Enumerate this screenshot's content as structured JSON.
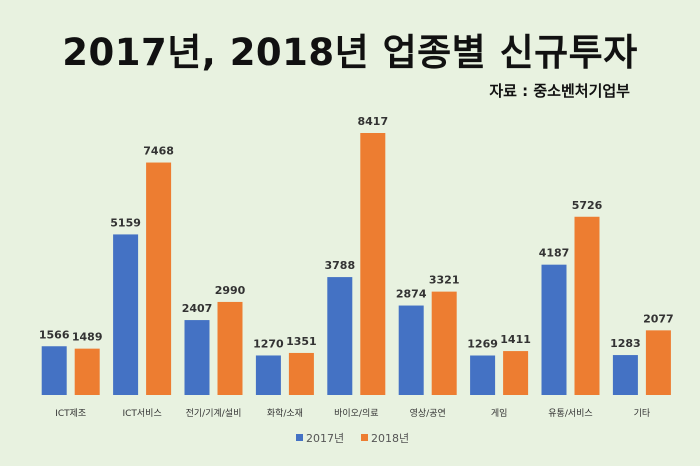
{
  "header": {
    "title": "2017년, 2018년 업종별 신규투자",
    "source": "자료 : 중소벤처기업부"
  },
  "chart_data": {
    "type": "bar",
    "title": "2017년, 2018년 업종별 신규투자",
    "categories": [
      "ICT제조",
      "ICT서비스",
      "전기/기계/설비",
      "화학/소재",
      "바이오/의료",
      "영상/공연",
      "게임",
      "유통/서비스",
      "기타"
    ],
    "series": [
      {
        "name": "2017년",
        "color": "#4472c4",
        "values": [
          1566,
          5159,
          2407,
          1270,
          3788,
          2874,
          1269,
          4187,
          1283
        ]
      },
      {
        "name": "2018년",
        "color": "#ed7d31",
        "values": [
          1489,
          7468,
          2990,
          1351,
          8417,
          3321,
          1411,
          5726,
          2077
        ]
      }
    ],
    "ylim": [
      0,
      8600
    ],
    "grid": false,
    "legend": "bottom"
  }
}
